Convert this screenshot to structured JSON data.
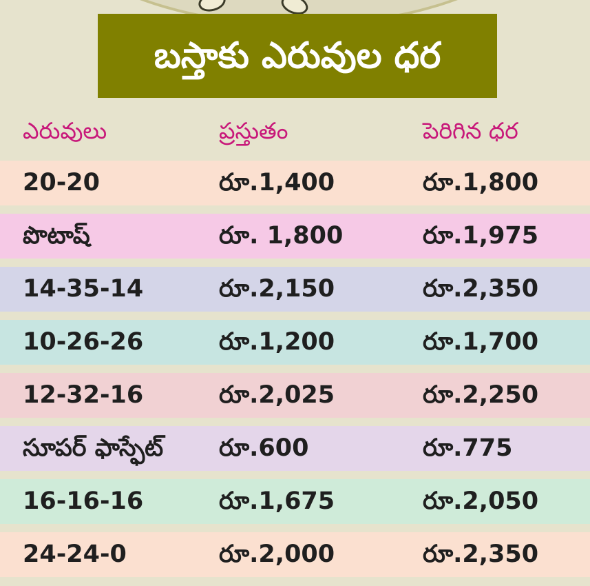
{
  "title": "బస్తాకు ఎరువుల ధర",
  "headers": {
    "fertilizer": "ఎరువులు",
    "current": "ప్రస్తుతం",
    "increased": "పెరిగిన ధర"
  },
  "rows": [
    {
      "name": "20-20",
      "current": "రూ.1,400",
      "increased": "రూ.1,800"
    },
    {
      "name": "పొటాష్",
      "current": "రూ. 1,800",
      "increased": "రూ.1,975"
    },
    {
      "name": "14-35-14",
      "current": "రూ.2,150",
      "increased": "రూ.2,350"
    },
    {
      "name": "10-26-26",
      "current": "రూ.1,200",
      "increased": "రూ.1,700"
    },
    {
      "name": "12-32-16",
      "current": "రూ.2,025",
      "increased": "రూ.2,250"
    },
    {
      "name": "సూపర్ ఫాస్ఫేట్",
      "current": "రూ.600",
      "increased": "రూ.775"
    },
    {
      "name": "16-16-16",
      "current": "రూ.1,675",
      "increased": "రూ.2,050"
    },
    {
      "name": "24-24-0",
      "current": "రూ.2,000",
      "increased": "రూ.2,350"
    }
  ],
  "colors": {
    "page_background": "#e6e3cd",
    "title_band": "#808000",
    "title_text": "#ffffff",
    "header_text": "#c8187a",
    "cell_text": "#1f1f1f",
    "row_backgrounds": [
      "#fbe0d0",
      "#f6c9e6",
      "#d4d5e8",
      "#c7e5e1",
      "#f1d1d3",
      "#e4d6ea",
      "#cfebd9",
      "#fbe0d0"
    ]
  }
}
